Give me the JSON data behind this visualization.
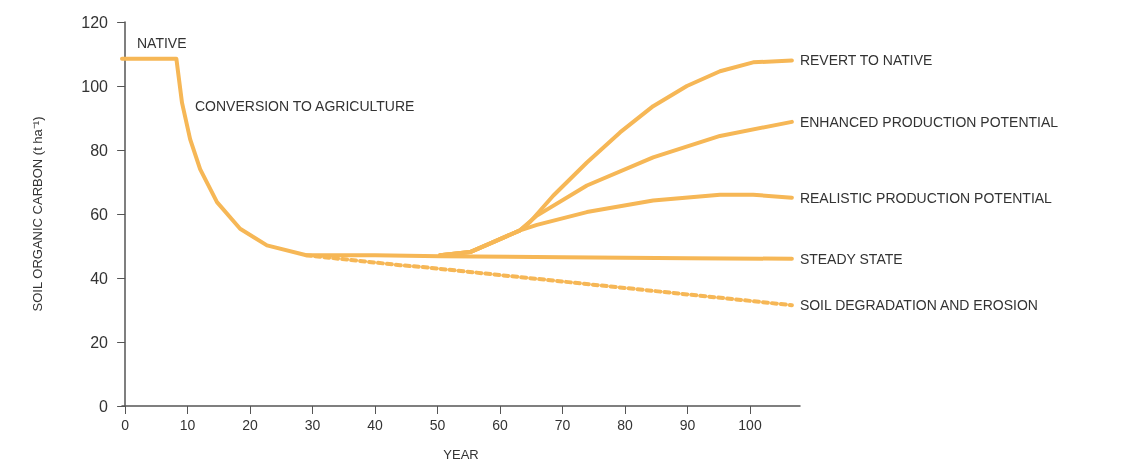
{
  "chart_data": {
    "type": "line",
    "xlabel": "YEAR",
    "ylabel": "SOIL ORGANIC CARBON (t ha⁻¹)",
    "xlim": [
      -0.5,
      108
    ],
    "xticks": [
      0,
      10,
      20,
      30,
      40,
      50,
      60,
      70,
      80,
      90,
      100
    ],
    "ylim": [
      0,
      120
    ],
    "yticks": [
      0,
      20,
      40,
      60,
      80,
      100,
      120
    ],
    "marker": "none",
    "line_style": "solid",
    "annotations": [
      "NATIVE",
      "CONVERSION TO AGRICULTURE"
    ],
    "series": [
      {
        "name": "REVERT TO NATIVE",
        "color": "#f6b756",
        "x": [
          50.4,
          55.2,
          58.9,
          63.2,
          64.8,
          68.5,
          73.9,
          79.2,
          84.5,
          89.9,
          95.2,
          100.5,
          106.7
        ],
        "values": [
          47.1,
          48.1,
          51.2,
          54.9,
          57.5,
          65.7,
          76.1,
          85.5,
          93.7,
          100,
          104.6,
          107.4,
          108
        ]
      },
      {
        "name": "ENHANCED PRODUCTION POTENTIAL",
        "color": "#f6b756",
        "x": [
          50.4,
          55.2,
          58.9,
          63.2,
          65.9,
          73.9,
          84.5,
          95.2,
          106.7
        ],
        "values": [
          47.1,
          48.1,
          51.2,
          54.9,
          59.5,
          68.9,
          77.7,
          84.4,
          88.8
        ]
      },
      {
        "name": "REALISTIC PRODUCTION POTENTIAL",
        "color": "#f6b756",
        "x": [
          50.4,
          55.2,
          58.9,
          63.2,
          65.9,
          73.9,
          84.5,
          95.2,
          100.5,
          106.7
        ],
        "values": [
          47.1,
          48.1,
          51.2,
          54.9,
          56.6,
          60.6,
          64.2,
          66,
          66,
          65.1
        ]
      },
      {
        "name": "STEADY STATE",
        "color": "#f6b756",
        "x": [
          -0.5,
          8.2,
          9.1,
          10.4,
          12,
          14.7,
          18.4,
          22.7,
          29,
          40,
          50.4,
          70,
          90,
          106.7
        ],
        "values": [
          108.5,
          108.5,
          94.8,
          83.4,
          74,
          63.7,
          55.4,
          50.2,
          47.1,
          47.1,
          46.8,
          46.5,
          46.2,
          46
        ]
      },
      {
        "name": "SOIL DEGRADATION AND EROSION",
        "color": "#f6b756",
        "line_style": "dashed",
        "x": [
          29,
          44,
          47.2,
          106.7
        ],
        "values": [
          47.1,
          44,
          43.5,
          31.5
        ]
      }
    ]
  }
}
